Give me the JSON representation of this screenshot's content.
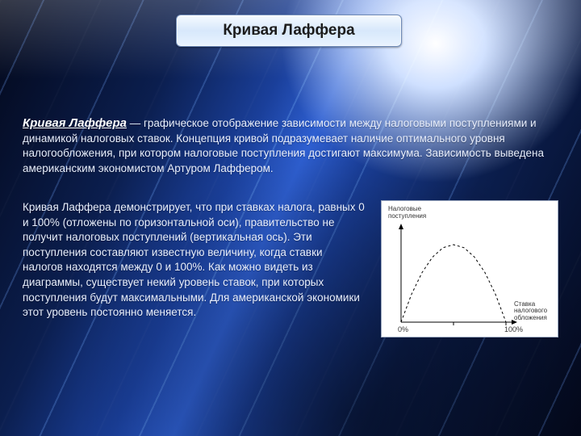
{
  "title": "Кривая Лаффера",
  "lead": "Кривая Лаффера",
  "para1_rest": " — графическое отображение зависимости между налоговыми поступлениями и динамикой налоговых ставок. Концепция кривой подразумевает наличие оптимального уровня налогообложения, при котором налоговые поступления достигают максимума. Зависимость выведена американским экономистом Артуром Лаффером.",
  "para2": "Кривая Лаффера демонстрирует, что при ставках налога, равных 0 и 100% (отложены по горизонтальной оси), правительство не получит налоговых поступлений (вертикальная ось). Эти поступления составляют известную величину, когда ставки налогов находятся между 0 и 100%. Как можно видеть из диаграммы, существует некий уровень ставок, при которых поступления будут максимальными. Для американской экономики этот уровень постоянно меняется.",
  "chart": {
    "type": "line",
    "y_label": "Налоговые\nпоступления",
    "x_label": "Ставка\nналогового\nобложения",
    "x_ticks": [
      "0%",
      "100%"
    ],
    "xlim": [
      0,
      100
    ],
    "ylim": [
      0,
      1
    ],
    "curve_points": [
      [
        0,
        0
      ],
      [
        10,
        0.36
      ],
      [
        20,
        0.64
      ],
      [
        30,
        0.84
      ],
      [
        40,
        0.96
      ],
      [
        50,
        1.0
      ],
      [
        60,
        0.96
      ],
      [
        70,
        0.84
      ],
      [
        80,
        0.64
      ],
      [
        90,
        0.36
      ],
      [
        100,
        0
      ]
    ],
    "colors": {
      "bg": "#ffffff",
      "axis": "#000000",
      "curve": "#000000",
      "curve_style": "dashed",
      "tick_len": 4
    },
    "line_width": 1,
    "dash": "3,3"
  }
}
